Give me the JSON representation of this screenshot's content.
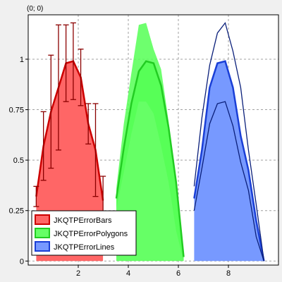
{
  "coordinate_readout": "(0; 0)",
  "chart_data": {
    "type": "area",
    "title": "",
    "xlabel": "",
    "ylabel": "",
    "xlim": [
      0,
      10
    ],
    "ylim": [
      -0.02,
      1.22
    ],
    "grid": true,
    "legend_position": "bottom-left",
    "xticks": [
      2,
      4,
      6,
      8
    ],
    "yticks": [
      0,
      0.25,
      0.5,
      0.75,
      1
    ],
    "ytick_labels": [
      "0",
      "0.25",
      "0.5",
      "0.75",
      "1"
    ],
    "xtick_labels": [
      "2",
      "4",
      "6",
      "8"
    ],
    "series": [
      {
        "name": "JKQTPErrorBars",
        "error_style": "bars",
        "line_color": "#cc0000",
        "fill_color": "#ff6666",
        "error_color": "#8b0000",
        "x": [
          0.32,
          0.61,
          0.91,
          1.21,
          1.51,
          1.8,
          2.1,
          2.4,
          2.69,
          2.99
        ],
        "y": [
          0.32,
          0.57,
          0.74,
          0.86,
          0.98,
          0.99,
          0.91,
          0.68,
          0.55,
          0.3
        ],
        "err": [
          0.05,
          0.17,
          0.28,
          0.31,
          0.19,
          0.19,
          0.14,
          0.1,
          0.23,
          0.12
        ]
      },
      {
        "name": "JKQTPErrorPolygons",
        "error_style": "polygons",
        "line_color": "#22cc22",
        "fill_color": "#66ff66",
        "error_color": "#55ff55",
        "x": [
          3.52,
          3.82,
          4.12,
          4.42,
          4.71,
          5.01,
          5.31,
          5.61,
          5.91,
          6.21
        ],
        "y": [
          0.31,
          0.56,
          0.78,
          0.94,
          0.99,
          0.98,
          0.87,
          0.66,
          0.39,
          0.02
        ],
        "upper": [
          0.36,
          0.68,
          0.93,
          1.17,
          1.18,
          1.05,
          0.95,
          0.69,
          0.38,
          0.05
        ],
        "lower": [
          0.26,
          0.44,
          0.63,
          0.79,
          0.79,
          0.73,
          0.57,
          0.39,
          0.15,
          0.0
        ]
      },
      {
        "name": "JKQTPErrorLines",
        "error_style": "lines",
        "line_color": "#1a3fd6",
        "fill_color": "#7799ff",
        "error_color": "#0a1f7a",
        "x": [
          6.63,
          6.94,
          7.25,
          7.56,
          7.87,
          8.18,
          8.49,
          8.8,
          9.11,
          9.42
        ],
        "y": [
          0.31,
          0.55,
          0.86,
          0.98,
          0.99,
          0.86,
          0.62,
          0.45,
          0.2,
          0.0
        ],
        "upper": [
          0.37,
          0.71,
          0.97,
          1.13,
          1.18,
          1.04,
          0.86,
          0.55,
          0.28,
          0.0
        ],
        "lower": [
          0.25,
          0.46,
          0.68,
          0.78,
          0.79,
          0.67,
          0.49,
          0.35,
          0.12,
          0.0
        ]
      }
    ]
  }
}
